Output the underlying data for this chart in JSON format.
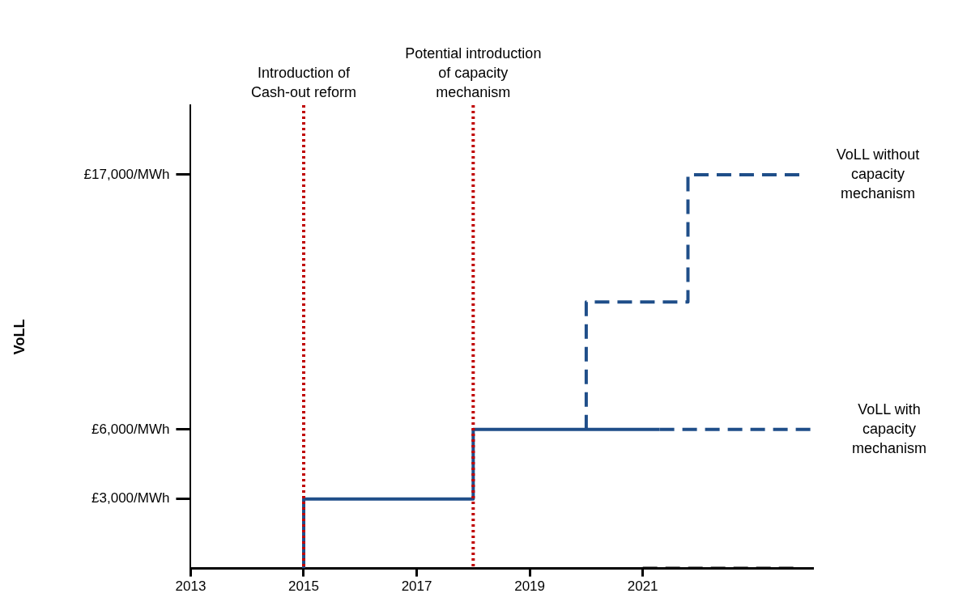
{
  "chart_data": {
    "type": "line",
    "ylabel": "VoLL",
    "xlim": [
      2013,
      2024
    ],
    "xticks": [
      2013,
      2015,
      2017,
      2019,
      2021
    ],
    "ylim": [
      0,
      20000
    ],
    "yticks": [
      {
        "value": 3000,
        "label": "£3,000/MWh"
      },
      {
        "value": 6000,
        "label": "£6,000/MWh"
      },
      {
        "value": 17000,
        "label": "£17,000/MWh"
      }
    ],
    "grid": false,
    "legend": false,
    "marker": "none",
    "series": [
      {
        "color": "#1f4e89",
        "line_style": "solid",
        "x": [
          2015,
          2015,
          2018,
          2018,
          2021.3
        ],
        "values": [
          0,
          3000,
          3000,
          6000,
          6000
        ]
      },
      {
        "name": "VoLL with capacity mechanism",
        "color": "#1f4e89",
        "line_style": "dashed",
        "x": [
          2021.3,
          2024
        ],
        "values": [
          6000,
          6000
        ]
      },
      {
        "name": "VoLL without capacity mechanism",
        "color": "#1f4e89",
        "line_style": "dashed",
        "x": [
          2020,
          2020,
          2021.8,
          2021.8,
          2023.8
        ],
        "values": [
          6000,
          11500,
          11500,
          17000,
          17000
        ]
      },
      {
        "color": "#000000",
        "line_style": "dashed",
        "x": [
          2021,
          2023.8
        ],
        "values": [
          0,
          0
        ]
      }
    ],
    "ref_lines": [
      {
        "axis": "x",
        "value": 2015,
        "label": "Introduction of Cash-out reform",
        "color": "#c00000",
        "line_style": "dotted"
      },
      {
        "axis": "x",
        "value": 2018,
        "label": "Potential introduction of capacity mechanism",
        "color": "#c00000",
        "line_style": "dotted"
      }
    ]
  }
}
